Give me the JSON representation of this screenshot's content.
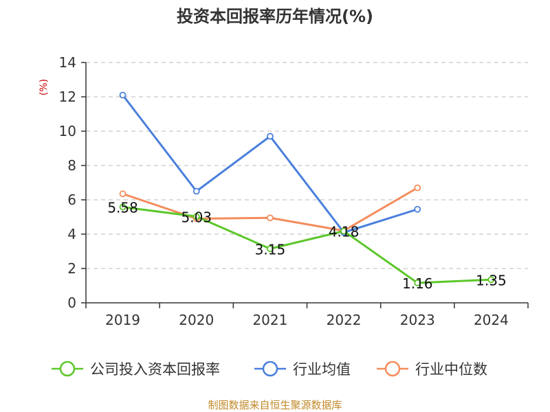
{
  "chart_data": {
    "type": "line",
    "title": "投资本回报率历年情况(%)",
    "ylabel": "(%)",
    "xlabel": "",
    "categories": [
      "2019",
      "2020",
      "2021",
      "2022",
      "2023",
      "2024"
    ],
    "ylim": [
      0,
      14
    ],
    "yticks": [
      0,
      2,
      4,
      6,
      8,
      10,
      12,
      14
    ],
    "grid": true,
    "legend_position": "bottom",
    "series": [
      {
        "name": "公司投入资本回报率",
        "color": "#5cc72a",
        "values": [
          5.58,
          5.03,
          3.15,
          4.18,
          1.16,
          1.35
        ],
        "labels": [
          "5.58",
          "5.03",
          "3.15",
          "4.18",
          "1.16",
          "1.35"
        ]
      },
      {
        "name": "行业均值",
        "color": "#4a7fdc",
        "values": [
          12.1,
          6.5,
          9.7,
          4.1,
          5.45,
          null
        ]
      },
      {
        "name": "行业中位数",
        "color": "#f48c5c",
        "values": [
          6.35,
          4.9,
          4.95,
          4.2,
          6.7,
          null
        ]
      }
    ],
    "source": "制图数据来自恒生聚源数据库"
  }
}
